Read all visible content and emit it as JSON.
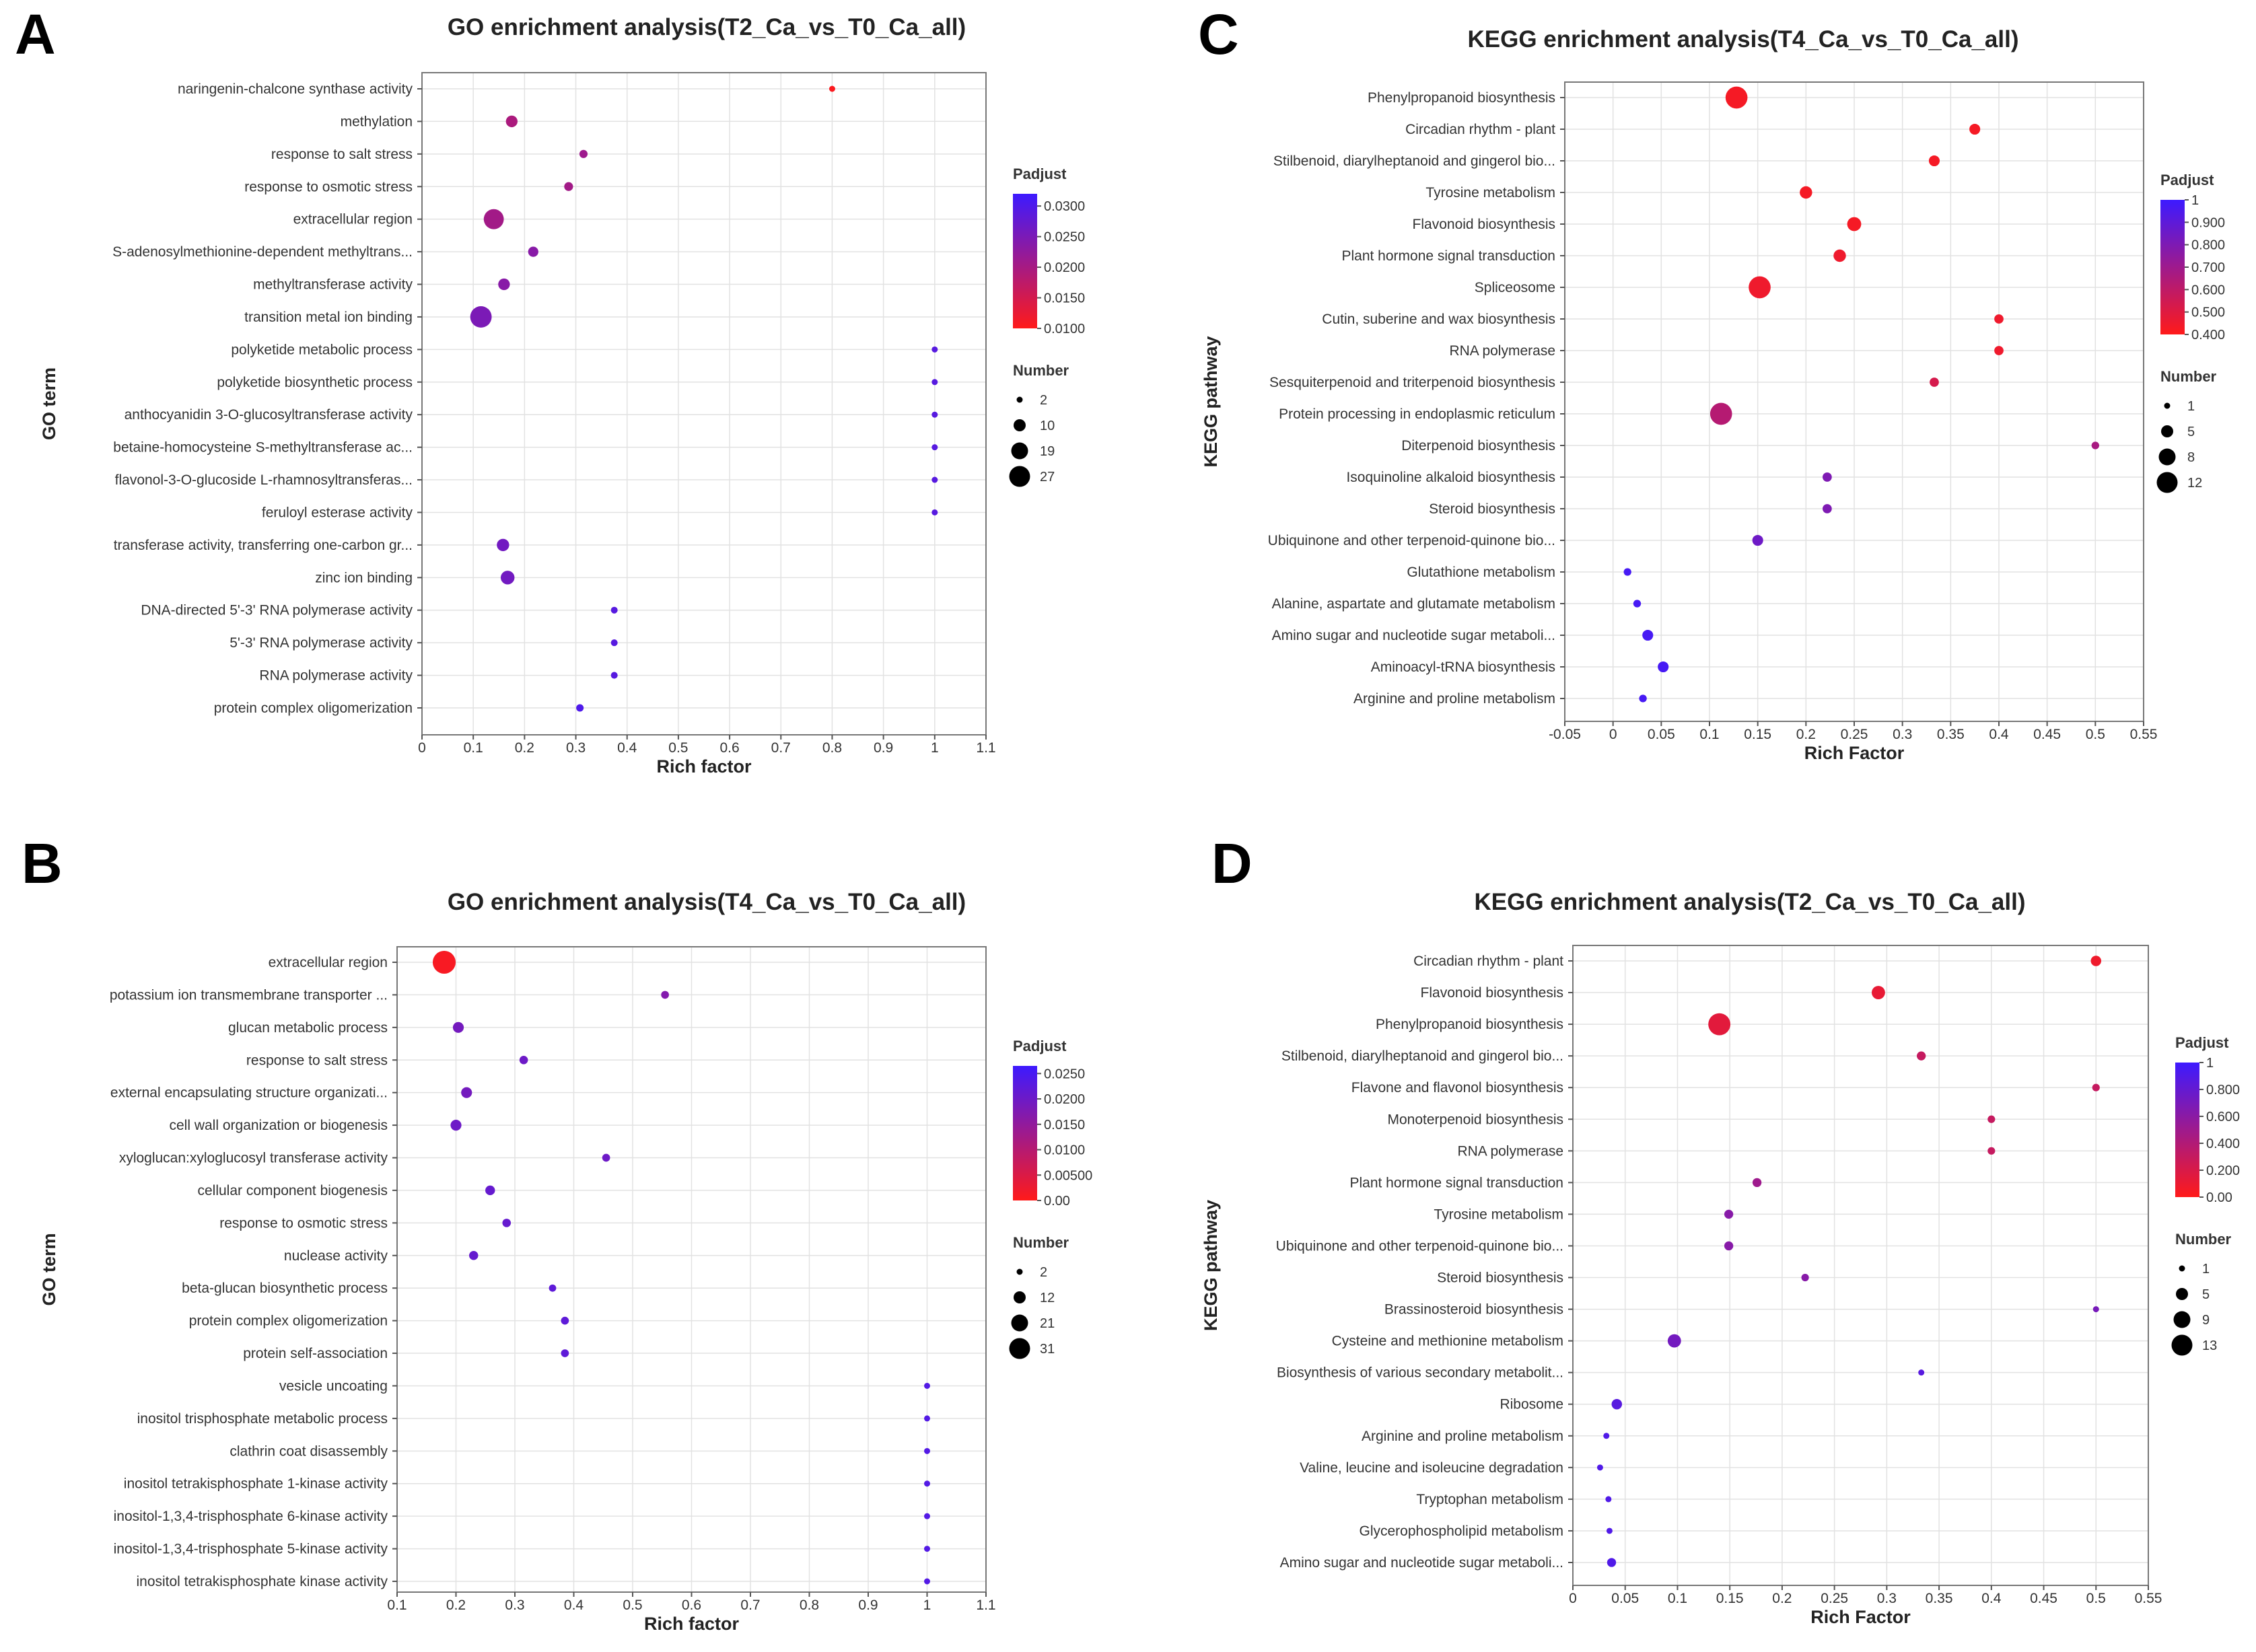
{
  "panel_letters": [
    "A",
    "B",
    "C",
    "D"
  ],
  "chart_data": [
    {
      "type": "scatter",
      "panel": "A",
      "title": "GO enrichment analysis(T2_Ca_vs_T0_Ca_all)",
      "xlabel": "Rich factor",
      "ylabel": "GO term",
      "xlim": [
        0,
        1.1
      ],
      "xticks": [
        0,
        0.1,
        0.2,
        0.3,
        0.4,
        0.5,
        0.6,
        0.7,
        0.8,
        0.9,
        1,
        1.1
      ],
      "xtick_labels": [
        "0",
        "0.1",
        "0.2",
        "0.3",
        "0.4",
        "0.5",
        "0.6",
        "0.7",
        "0.8",
        "0.9",
        "1",
        "1.1"
      ],
      "legend_color": {
        "title": "Padjust",
        "min": 0.01,
        "max": 0.032,
        "ticks": [
          "0.0300",
          "0.0250",
          "0.0200",
          "0.0150",
          "0.0100"
        ],
        "tick_values": [
          0.03,
          0.025,
          0.02,
          0.015,
          0.01
        ],
        "low_color": "#ff1a1a",
        "high_color": "#3d1aff"
      },
      "legend_size": {
        "title": "Number",
        "labels": [
          "2",
          "10",
          "19",
          "27"
        ],
        "values": [
          2,
          10,
          19,
          27
        ]
      },
      "categories": [
        "naringenin-chalcone synthase activity",
        "methylation",
        "response to salt stress",
        "response to osmotic stress",
        "extracellular region",
        "S-adenosylmethionine-dependent methyltrans...",
        "methyltransferase activity",
        "transition metal ion binding",
        "polyketide metabolic process",
        "polyketide biosynthetic process",
        "anthocyanidin 3-O-glucosyltransferase activity",
        "betaine-homocysteine S-methyltransferase ac...",
        "flavonol-3-O-glucoside L-rhamnosyltransferas...",
        "feruloyl esterase activity",
        "transferase activity, transferring one-carbon gr...",
        "zinc ion binding",
        "DNA-directed 5'-3' RNA polymerase activity",
        "5'-3' RNA polymerase activity",
        "RNA polymerase activity",
        "protein complex oligomerization"
      ],
      "x": [
        0.8,
        0.175,
        0.315,
        0.286,
        0.14,
        0.217,
        0.16,
        0.115,
        1,
        1,
        1,
        1,
        1,
        1,
        0.158,
        0.167,
        0.375,
        0.375,
        0.375,
        0.308
      ],
      "number": [
        2,
        10,
        5,
        6,
        22,
        8,
        10,
        24,
        2,
        2,
        2,
        2,
        2,
        2,
        11,
        13,
        3,
        3,
        3,
        4
      ],
      "padjust": [
        0.0105,
        0.0195,
        0.021,
        0.0205,
        0.0205,
        0.0235,
        0.0235,
        0.025,
        0.029,
        0.029,
        0.029,
        0.029,
        0.029,
        0.029,
        0.026,
        0.026,
        0.029,
        0.029,
        0.029,
        0.03
      ]
    },
    {
      "type": "scatter",
      "panel": "B",
      "title": "GO enrichment analysis(T4_Ca_vs_T0_Ca_all)",
      "xlabel": "Rich factor",
      "ylabel": "GO term",
      "xlim": [
        0.1,
        1.1
      ],
      "xticks": [
        0.1,
        0.2,
        0.3,
        0.4,
        0.5,
        0.6,
        0.7,
        0.8,
        0.9,
        1,
        1.1
      ],
      "xtick_labels": [
        "0.1",
        "0.2",
        "0.3",
        "0.4",
        "0.5",
        "0.6",
        "0.7",
        "0.8",
        "0.9",
        "1",
        "1.1"
      ],
      "legend_color": {
        "title": "Padjust",
        "min": 0,
        "max": 0.0265,
        "ticks": [
          "0.0250",
          "0.0200",
          "0.0150",
          "0.0100",
          "0.00500",
          "0.00"
        ],
        "tick_values": [
          0.025,
          0.02,
          0.015,
          0.01,
          0.005,
          0
        ],
        "low_color": "#ff1a1a",
        "high_color": "#3d1aff"
      },
      "legend_size": {
        "title": "Number",
        "labels": [
          "2",
          "12",
          "21",
          "31"
        ],
        "values": [
          2,
          12,
          21,
          31
        ]
      },
      "categories": [
        "extracellular region",
        "potassium ion transmembrane transporter ...",
        "glucan metabolic process",
        "response to salt stress",
        "external encapsulating structure organizati...",
        "cell wall organization or biogenesis",
        "xyloglucan:xyloglucosyl transferase activity",
        "cellular component biogenesis",
        "response to osmotic stress",
        "nuclease activity",
        "beta-glucan biosynthetic process",
        "protein complex oligomerization",
        "protein self-association",
        "vesicle uncoating",
        "inositol trisphosphate metabolic process",
        "clathrin coat disassembly",
        "inositol tetrakisphosphate 1-kinase activity",
        "inositol-1,3,4-trisphosphate 6-kinase activity",
        "inositol-1,3,4-trisphosphate 5-kinase activity",
        "inositol tetrakisphosphate kinase activity"
      ],
      "x": [
        0.18,
        0.555,
        0.204,
        0.315,
        0.218,
        0.2,
        0.455,
        0.258,
        0.286,
        0.23,
        0.364,
        0.385,
        0.385,
        1,
        1,
        1,
        1,
        1,
        1,
        1
      ],
      "number": [
        30,
        5,
        10,
        6,
        10,
        10,
        5,
        8,
        6,
        7,
        4,
        5,
        5,
        2,
        2,
        2,
        2,
        2,
        2,
        2
      ],
      "padjust": [
        0.001,
        0.017,
        0.019,
        0.02,
        0.019,
        0.02,
        0.02,
        0.021,
        0.021,
        0.021,
        0.022,
        0.022,
        0.022,
        0.0235,
        0.0235,
        0.0235,
        0.0235,
        0.0235,
        0.0235,
        0.0235
      ]
    },
    {
      "type": "scatter",
      "panel": "C",
      "title": "KEGG enrichment analysis(T4_Ca_vs_T0_Ca_all)",
      "xlabel": "Rich Factor",
      "ylabel": "KEGG pathway",
      "xlim": [
        -0.05,
        0.55
      ],
      "xticks": [
        -0.05,
        0,
        0.05,
        0.1,
        0.15,
        0.2,
        0.25,
        0.3,
        0.35,
        0.4,
        0.45,
        0.5,
        0.55
      ],
      "xtick_labels": [
        "-0.05",
        "0",
        "0.05",
        "0.1",
        "0.15",
        "0.2",
        "0.25",
        "0.3",
        "0.35",
        "0.4",
        "0.45",
        "0.5",
        "0.55"
      ],
      "legend_color": {
        "title": "Padjust",
        "min": 0.4,
        "max": 1,
        "ticks": [
          "1",
          "0.900",
          "0.800",
          "0.700",
          "0.600",
          "0.500",
          "0.400"
        ],
        "tick_values": [
          1,
          0.9,
          0.8,
          0.7,
          0.6,
          0.5,
          0.4
        ],
        "low_color": "#ff1a1a",
        "high_color": "#3d1aff"
      },
      "legend_size": {
        "title": "Number",
        "labels": [
          "1",
          "5",
          "8",
          "12"
        ],
        "values": [
          1,
          5,
          8,
          12
        ]
      },
      "categories": [
        "Phenylpropanoid biosynthesis",
        "Circadian rhythm - plant",
        "Stilbenoid, diarylheptanoid and gingerol bio...",
        "Tyrosine metabolism",
        "Flavonoid biosynthesis",
        "Plant hormone signal transduction",
        "Spliceosome",
        "Cutin, suberine and wax biosynthesis",
        "RNA polymerase",
        "Sesquiterpenoid and triterpenoid biosynthesis",
        "Protein processing in endoplasmic reticulum",
        "Diterpenoid biosynthesis",
        "Isoquinoline alkaloid biosynthesis",
        "Steroid biosynthesis",
        "Ubiquinone and other terpenoid-quinone bio...",
        "Glutathione metabolism",
        "Alanine, aspartate and glutamate metabolism",
        "Amino sugar and nucleotide sugar metaboli...",
        "Aminoacyl-tRNA biosynthesis",
        "Arginine and proline metabolism"
      ],
      "x": [
        0.128,
        0.375,
        0.333,
        0.2,
        0.25,
        0.235,
        0.152,
        0.4,
        0.4,
        0.333,
        0.112,
        0.5,
        0.222,
        0.222,
        0.15,
        0.015,
        0.025,
        0.036,
        0.052,
        0.031
      ],
      "number": [
        11,
        4,
        4,
        5,
        6,
        5,
        11,
        3,
        3,
        3,
        11,
        2,
        3,
        3,
        4,
        2,
        2,
        4,
        4,
        2
      ],
      "padjust": [
        0.43,
        0.43,
        0.43,
        0.43,
        0.43,
        0.45,
        0.45,
        0.45,
        0.45,
        0.53,
        0.63,
        0.67,
        0.8,
        0.8,
        0.85,
        0.97,
        0.97,
        0.97,
        0.97,
        0.97
      ]
    },
    {
      "type": "scatter",
      "panel": "D",
      "title": "KEGG enrichment analysis(T2_Ca_vs_T0_Ca_all)",
      "xlabel": "Rich Factor",
      "ylabel": "KEGG pathway",
      "xlim": [
        0,
        0.55
      ],
      "xticks": [
        0,
        0.05,
        0.1,
        0.15,
        0.2,
        0.25,
        0.3,
        0.35,
        0.4,
        0.45,
        0.5,
        0.55
      ],
      "xtick_labels": [
        "0",
        "0.05",
        "0.1",
        "0.15",
        "0.2",
        "0.25",
        "0.3",
        "0.35",
        "0.4",
        "0.45",
        "0.5",
        "0.55"
      ],
      "legend_color": {
        "title": "Padjust",
        "min": 0,
        "max": 1,
        "ticks": [
          "1",
          "0.800",
          "0.600",
          "0.400",
          "0.200",
          "0.00"
        ],
        "tick_values": [
          1,
          0.8,
          0.6,
          0.4,
          0.2,
          0
        ],
        "low_color": "#ff1a1a",
        "high_color": "#3d1aff"
      },
      "legend_size": {
        "title": "Number",
        "labels": [
          "1",
          "5",
          "9",
          "13"
        ],
        "values": [
          1,
          5,
          9,
          13
        ]
      },
      "categories": [
        "Circadian rhythm - plant",
        "Flavonoid biosynthesis",
        "Phenylpropanoid biosynthesis",
        "Stilbenoid, diarylheptanoid and gingerol bio...",
        "Flavone and flavonol biosynthesis",
        "Monoterpenoid biosynthesis",
        "RNA polymerase",
        "Plant hormone signal transduction",
        "Tyrosine metabolism",
        "Ubiquinone and other terpenoid-quinone bio...",
        "Steroid biosynthesis",
        "Brassinosteroid biosynthesis",
        "Cysteine and methionine metabolism",
        "Biosynthesis of various secondary metabolit...",
        "Ribosome",
        "Arginine and proline metabolism",
        "Valine, leucine and isoleucine degradation",
        "Tryptophan metabolism",
        "Glycerophospholipid metabolism",
        "Amino sugar and nucleotide sugar metaboli..."
      ],
      "x": [
        0.5,
        0.292,
        0.14,
        0.333,
        0.5,
        0.4,
        0.4,
        0.176,
        0.149,
        0.149,
        0.222,
        0.5,
        0.097,
        0.333,
        0.042,
        0.032,
        0.026,
        0.034,
        0.035,
        0.037
      ],
      "number": [
        4,
        6,
        12,
        3,
        2,
        2,
        2,
        3,
        3,
        3,
        2,
        1,
        6,
        1,
        4,
        1,
        1,
        1,
        1,
        3
      ],
      "padjust": [
        0.08,
        0.12,
        0.15,
        0.3,
        0.3,
        0.3,
        0.3,
        0.5,
        0.62,
        0.62,
        0.62,
        0.7,
        0.72,
        0.86,
        0.86,
        0.9,
        0.9,
        0.9,
        0.9,
        0.9
      ]
    }
  ]
}
